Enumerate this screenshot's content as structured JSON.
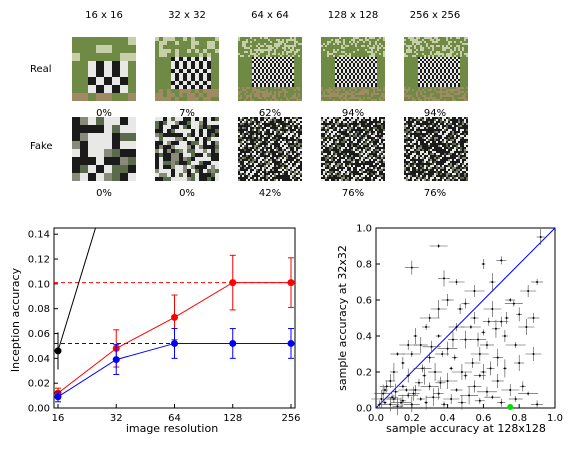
{
  "grid": {
    "resolutions": [
      "16 x 16",
      "32 x 32",
      "64 x 64",
      "128 x 128",
      "256 x 256"
    ],
    "rows": [
      {
        "label": "Real",
        "percents": [
          "0%",
          "7%",
          "62%",
          "94%",
          "94%"
        ]
      },
      {
        "label": "Fake",
        "percents": [
          "0%",
          "0%",
          "42%",
          "76%",
          "76%"
        ]
      }
    ],
    "colors": {
      "grass": "#6f8a45",
      "sky": "#c7cfa8",
      "soil": "#a08a64",
      "stripe_dark": "#1b1b1b",
      "stripe_light": "#e8e8e6"
    }
  },
  "chart_data": [
    {
      "type": "line",
      "x": [
        16,
        32,
        64,
        128,
        256
      ],
      "xscale": "log2",
      "xlabel": "image resolution",
      "ylabel": "Inception accuracy",
      "xticks": [
        "16",
        "32",
        "64",
        "128",
        "256"
      ],
      "yticks": [
        "0.00",
        "0.02",
        "0.04",
        "0.06",
        "0.08",
        "0.10",
        "0.12",
        "0.14"
      ],
      "ylim": [
        0,
        0.145
      ],
      "series": [
        {
          "color": "#ff0000",
          "values": [
            0.012,
            0.048,
            0.073,
            0.101,
            0.101
          ],
          "err": [
            0.004,
            0.015,
            0.018,
            0.022,
            0.02
          ]
        },
        {
          "color": "#0000ff",
          "values": [
            0.009,
            0.039,
            0.052,
            0.052,
            0.052
          ],
          "err": [
            0.004,
            0.012,
            0.012,
            0.012,
            0.012
          ]
        }
      ],
      "black_point": {
        "x": 16,
        "y": 0.046,
        "err": 0.015
      },
      "black_line_end": {
        "x": 25,
        "y": 0.145
      },
      "ref_lines": [
        {
          "y": 0.101,
          "color": "#ff0000",
          "style": "dashed"
        },
        {
          "y": 0.052,
          "color": "#0000ff",
          "style": "dashed"
        }
      ]
    },
    {
      "type": "scatter",
      "xlabel": "sample accuracy at 128x128",
      "ylabel": "sample accuracy at 32x32",
      "xlim": [
        0,
        1
      ],
      "ylim": [
        0,
        1
      ],
      "xticks": [
        "0.0",
        "0.2",
        "0.4",
        "0.6",
        "0.8",
        "1.0"
      ],
      "yticks": [
        "0.0",
        "0.2",
        "0.4",
        "0.6",
        "0.8",
        "1.0"
      ],
      "diagonal_color": "#0000ff",
      "highlight": {
        "x": 0.75,
        "y": 0.0,
        "color": "#00dd00"
      },
      "points": [
        [
          0.05,
          0.03
        ],
        [
          0.08,
          0.02
        ],
        [
          0.1,
          0.05
        ],
        [
          0.12,
          0.01
        ],
        [
          0.15,
          0.04
        ],
        [
          0.18,
          0.07
        ],
        [
          0.2,
          0.02
        ],
        [
          0.22,
          0.1
        ],
        [
          0.25,
          0.05
        ],
        [
          0.28,
          0.03
        ],
        [
          0.3,
          0.12
        ],
        [
          0.32,
          0.06
        ],
        [
          0.35,
          0.08
        ],
        [
          0.38,
          0.02
        ],
        [
          0.4,
          0.15
        ],
        [
          0.42,
          0.05
        ],
        [
          0.45,
          0.1
        ],
        [
          0.48,
          0.03
        ],
        [
          0.5,
          0.18
        ],
        [
          0.52,
          0.07
        ],
        [
          0.55,
          0.12
        ],
        [
          0.58,
          0.04
        ],
        [
          0.6,
          0.2
        ],
        [
          0.62,
          0.09
        ],
        [
          0.65,
          0.06
        ],
        [
          0.68,
          0.15
        ],
        [
          0.7,
          0.03
        ],
        [
          0.72,
          0.22
        ],
        [
          0.75,
          0.1
        ],
        [
          0.78,
          0.05
        ],
        [
          0.8,
          0.25
        ],
        [
          0.82,
          0.12
        ],
        [
          0.85,
          0.08
        ],
        [
          0.88,
          0.3
        ],
        [
          0.9,
          0.02
        ],
        [
          0.1,
          0.2
        ],
        [
          0.15,
          0.25
        ],
        [
          0.2,
          0.3
        ],
        [
          0.25,
          0.35
        ],
        [
          0.3,
          0.28
        ],
        [
          0.35,
          0.4
        ],
        [
          0.4,
          0.33
        ],
        [
          0.45,
          0.45
        ],
        [
          0.5,
          0.38
        ],
        [
          0.55,
          0.5
        ],
        [
          0.6,
          0.42
        ],
        [
          0.65,
          0.55
        ],
        [
          0.7,
          0.48
        ],
        [
          0.75,
          0.6
        ],
        [
          0.8,
          0.52
        ],
        [
          0.3,
          0.5
        ],
        [
          0.35,
          0.55
        ],
        [
          0.4,
          0.6
        ],
        [
          0.28,
          0.45
        ],
        [
          0.22,
          0.4
        ],
        [
          0.18,
          0.35
        ],
        [
          0.12,
          0.3
        ],
        [
          0.08,
          0.15
        ],
        [
          0.05,
          0.1
        ],
        [
          0.03,
          0.05
        ],
        [
          0.85,
          0.65
        ],
        [
          0.9,
          0.7
        ],
        [
          0.92,
          0.95
        ],
        [
          0.6,
          0.8
        ],
        [
          0.35,
          0.9
        ],
        [
          0.2,
          0.78
        ],
        [
          0.7,
          0.82
        ],
        [
          0.65,
          0.7
        ],
        [
          0.55,
          0.65
        ],
        [
          0.45,
          0.7
        ],
        [
          0.38,
          0.72
        ],
        [
          0.5,
          0.58
        ],
        [
          0.42,
          0.22
        ],
        [
          0.58,
          0.3
        ],
        [
          0.62,
          0.35
        ],
        [
          0.68,
          0.28
        ],
        [
          0.72,
          0.4
        ],
        [
          0.78,
          0.35
        ],
        [
          0.84,
          0.45
        ],
        [
          0.88,
          0.5
        ],
        [
          0.15,
          0.12
        ],
        [
          0.18,
          0.18
        ],
        [
          0.26,
          0.22
        ],
        [
          0.33,
          0.2
        ],
        [
          0.36,
          0.14
        ],
        [
          0.44,
          0.28
        ],
        [
          0.48,
          0.2
        ],
        [
          0.54,
          0.25
        ],
        [
          0.58,
          0.18
        ],
        [
          0.64,
          0.22
        ],
        [
          0.02,
          0.02
        ],
        [
          0.04,
          0.08
        ],
        [
          0.06,
          0.12
        ],
        [
          0.09,
          0.06
        ],
        [
          0.11,
          0.09
        ],
        [
          0.14,
          0.03
        ],
        [
          0.17,
          0.1
        ],
        [
          0.21,
          0.08
        ],
        [
          0.24,
          0.14
        ],
        [
          0.27,
          0.18
        ],
        [
          0.31,
          0.34
        ],
        [
          0.37,
          0.3
        ],
        [
          0.43,
          0.38
        ],
        [
          0.47,
          0.55
        ],
        [
          0.53,
          0.45
        ],
        [
          0.57,
          0.38
        ],
        [
          0.63,
          0.48
        ],
        [
          0.67,
          0.44
        ],
        [
          0.73,
          0.5
        ],
        [
          0.77,
          0.58
        ]
      ]
    }
  ]
}
